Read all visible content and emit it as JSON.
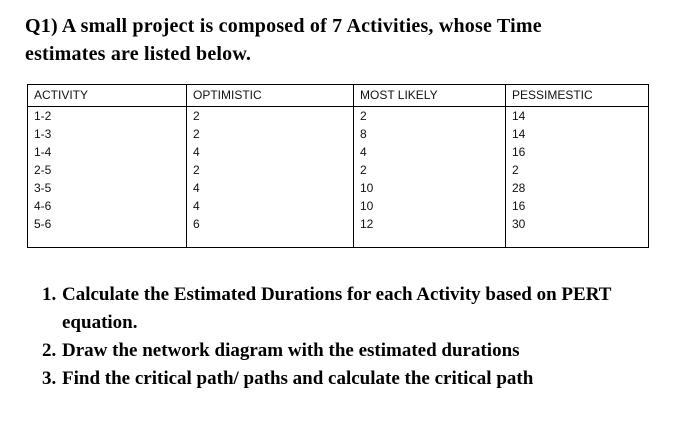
{
  "page": {
    "title": {
      "line1": "Q1) A small project is composed of 7 Activities, whose Time",
      "line2": "estimates are listed below."
    },
    "table": {
      "headers": [
        "ACTIVITY",
        "OPTIMISTIC",
        "MOST LIKELY",
        "PESSIMESTIC"
      ],
      "rows": [
        [
          "1-2",
          "2",
          "2",
          "14"
        ],
        [
          "1-3",
          "2",
          "8",
          "14"
        ],
        [
          "1-4",
          "4",
          "4",
          "16"
        ],
        [
          "2-5",
          "2",
          "2",
          "2"
        ],
        [
          "3-5",
          "4",
          "10",
          "28"
        ],
        [
          "4-6",
          "4",
          "10",
          "16"
        ],
        [
          "5-6",
          "6",
          "12",
          "30"
        ]
      ]
    },
    "tasks": [
      {
        "number": "1.",
        "text": "Calculate the Estimated Durations for each Activity based on PERT equation."
      },
      {
        "number": "2.",
        "text": "Draw the network diagram with the estimated durations"
      },
      {
        "number": "3.",
        "text": "Find the critical path/ paths and calculate the critical path"
      }
    ],
    "colors": {
      "background": "#ffffff",
      "text": "#000000",
      "table_border": "#000000"
    }
  }
}
